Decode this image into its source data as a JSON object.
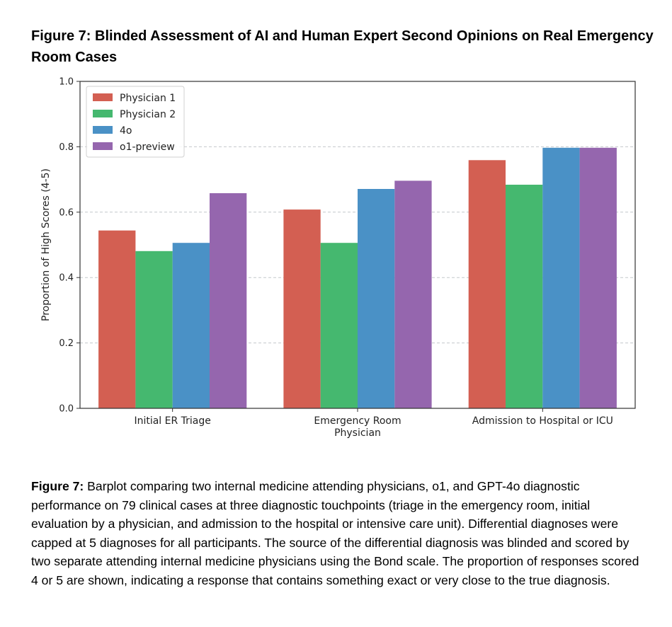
{
  "figure_title": "Figure 7: Blinded Assessment of AI and Human Expert Second Opinions on Real Emergency Room Cases",
  "caption": {
    "label": "Figure 7:",
    "text": " Barplot comparing two internal medicine attending physicians, o1, and GPT-4o diagnostic performance on 79 clinical cases at three diagnostic touchpoints (triage in the emergency room, initial evaluation by a physician, and admission to the hospital or intensive care unit). Differential diagnoses were capped at 5 diagnoses for all participants. The source of the differential diagnosis was blinded and scored by two separate attending internal medicine physicians using the Bond scale. The proportion of responses scored 4 or 5 are shown, indicating a response that contains something exact or very close to the true diagnosis."
  },
  "chart_data": {
    "type": "bar",
    "title": "",
    "xlabel": "",
    "ylabel": "Proportion of High Scores (4-5)",
    "ylim": [
      0,
      1.0
    ],
    "yticks": [
      "0.0",
      "0.2",
      "0.4",
      "0.6",
      "0.8",
      "1.0"
    ],
    "grid": true,
    "legend_position": "top-left",
    "categories": [
      [
        "Initial ER Triage"
      ],
      [
        "Emergency Room",
        "Physician"
      ],
      [
        "Admission to Hospital or ICU"
      ]
    ],
    "series": [
      {
        "name": "Physician 1",
        "color": "#d35f52",
        "values": [
          0.544,
          0.608,
          0.759
        ]
      },
      {
        "name": "Physician 2",
        "color": "#45b86f",
        "values": [
          0.481,
          0.506,
          0.684
        ]
      },
      {
        "name": "4o",
        "color": "#4a91c6",
        "values": [
          0.506,
          0.671,
          0.797
        ]
      },
      {
        "name": "o1-preview",
        "color": "#9566ae",
        "values": [
          0.658,
          0.696,
          0.797
        ]
      }
    ]
  }
}
